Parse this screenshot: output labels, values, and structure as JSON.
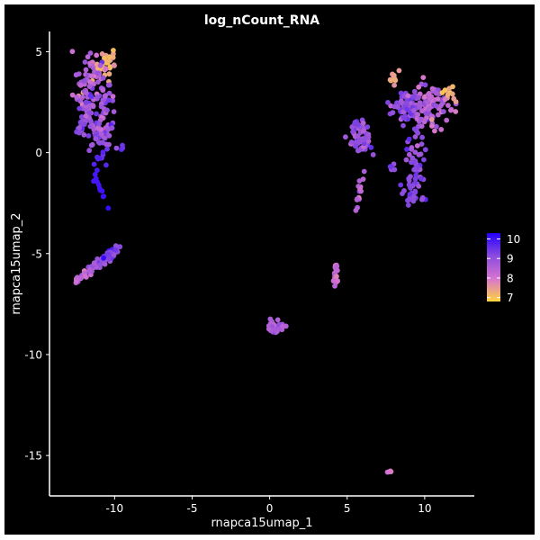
{
  "chart_data": {
    "type": "scatter",
    "title": "log_nCount_RNA",
    "xlabel": "rnapca15umap_1",
    "ylabel": "rnapca15umap_2",
    "xlim": [
      -14.2,
      13.2
    ],
    "ylim": [
      -17.0,
      6.0
    ],
    "x_ticks": [
      -10,
      -5,
      0,
      5,
      10
    ],
    "y_ticks": [
      5,
      0,
      -5,
      -10,
      -15
    ],
    "x_tick_labels": [
      "-10",
      "-5",
      "0",
      "5",
      "10"
    ],
    "y_tick_labels": [
      "5",
      "0",
      "-5",
      "-10",
      "-15"
    ],
    "grid": false,
    "background": "#000000",
    "axis_color": "#ffffff",
    "colorbar": {
      "label": "",
      "min": 6.8,
      "max": 10.3,
      "ticks": [
        10,
        9,
        8,
        7
      ],
      "tick_labels": [
        "10",
        "9",
        "8",
        "7"
      ],
      "colors": [
        "#ffd33d",
        "#d774d0",
        "#8a4bde",
        "#2600ff"
      ],
      "placement": "right"
    },
    "clusters": [
      {
        "name": "upper-left",
        "x_range": [
          -12.3,
          -9.4
        ],
        "y_range": [
          -2.8,
          4.9
        ],
        "value_mean": 8.7,
        "value_range": [
          7.0,
          10.2
        ]
      },
      {
        "name": "left-diagonal",
        "x_range": [
          -12.6,
          -9.6
        ],
        "y_range": [
          -6.5,
          -4.6
        ],
        "value_mean": 8.6,
        "value_range": [
          7.8,
          10.2
        ]
      },
      {
        "name": "center",
        "x_range": [
          0.0,
          0.9
        ],
        "y_range": [
          -9.0,
          -8.2
        ],
        "value_mean": 8.5,
        "value_range": [
          8.0,
          9.0
        ]
      },
      {
        "name": "center-right-strip",
        "x_range": [
          4.0,
          4.4
        ],
        "y_range": [
          -6.9,
          -5.5
        ],
        "value_mean": 8.2,
        "value_range": [
          7.6,
          8.8
        ]
      },
      {
        "name": "bottom-right",
        "x_range": [
          7.6,
          7.9
        ],
        "y_range": [
          -15.9,
          -15.7
        ],
        "value_mean": 8.0,
        "value_range": [
          7.8,
          8.3
        ]
      },
      {
        "name": "right-large",
        "x_range": [
          5.0,
          12.0
        ],
        "y_range": [
          -3.4,
          4.1
        ],
        "value_mean": 8.9,
        "value_range": [
          7.0,
          9.8
        ]
      }
    ]
  }
}
